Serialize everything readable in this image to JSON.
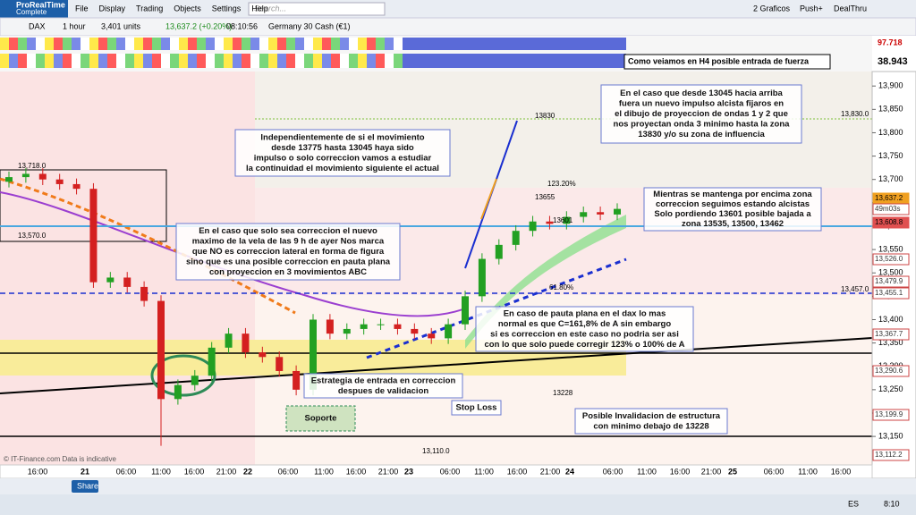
{
  "menu": {
    "app_name": "ProRealTime",
    "app_edition": "Complete",
    "items": [
      "File",
      "Display",
      "Trading",
      "Objects",
      "Settings",
      "Help"
    ],
    "search_placeholder": "Search...",
    "right": [
      "2 Graficos",
      "Push+",
      "DealThru"
    ]
  },
  "toolbar": {
    "instrument": "DAX",
    "timeframe": "1 hour",
    "units": "3,401 units",
    "price": "13,637.2 (+0.20%)",
    "time": "08:10:56",
    "name": "Germany 30 Cash (€1)"
  },
  "indicators": {
    "top_value": "97.718",
    "bottom_value": "38.943",
    "note": "Como veiamos en H4 posible entrada de fuerza"
  },
  "chart": {
    "ylim": [
      13089,
      13931
    ],
    "yticks": [
      {
        "value": 13900,
        "label": "13,900"
      },
      {
        "value": 13850,
        "label": "13,850"
      },
      {
        "value": 13800,
        "label": "13,800"
      },
      {
        "value": 13750,
        "label": "13,750"
      },
      {
        "value": 13700,
        "label": "13,700"
      },
      {
        "value": 13650,
        "label": "13,650"
      },
      {
        "value": 13600,
        "label": "13,600"
      },
      {
        "value": 13550,
        "label": "13,550"
      },
      {
        "value": 13500,
        "label": "13,500"
      },
      {
        "value": 13450,
        "label": "13,450"
      },
      {
        "value": 13400,
        "label": "13,400"
      },
      {
        "value": 13350,
        "label": "13,350"
      },
      {
        "value": 13300,
        "label": "13,300"
      },
      {
        "value": 13250,
        "label": "13,250"
      },
      {
        "value": 13200,
        "label": "13,200"
      },
      {
        "value": 13150,
        "label": "13,150"
      }
    ],
    "open": [
      13695,
      13705,
      13712,
      13700,
      13690,
      13680,
      13480,
      13490,
      13470,
      13440,
      13230,
      13260,
      13280,
      13340,
      13370,
      13330,
      13320,
      13290,
      13250,
      13400,
      13370,
      13380,
      13390,
      13390,
      13380,
      13370,
      13360,
      13390,
      13450,
      13530,
      13560,
      13590,
      13610,
      13605,
      13620,
      13630,
      13625
    ],
    "high": [
      13717,
      13724,
      13724,
      13712,
      13702,
      13692,
      13502,
      13502,
      13482,
      13452,
      13272,
      13292,
      13352,
      13382,
      13382,
      13342,
      13332,
      13302,
      13412,
      13412,
      13392,
      13402,
      13402,
      13402,
      13392,
      13382,
      13402,
      13462,
      13542,
      13572,
      13602,
      13622,
      13622,
      13632,
      13642,
      13642,
      13649
    ],
    "low": [
      13683,
      13693,
      13688,
      13678,
      13668,
      13468,
      13468,
      13458,
      13428,
      13130,
      13218,
      13248,
      13268,
      13328,
      13318,
      13308,
      13278,
      13238,
      13238,
      13358,
      13358,
      13368,
      13378,
      13368,
      13358,
      13348,
      13348,
      13378,
      13438,
      13518,
      13548,
      13578,
      13593,
      13593,
      13608,
      13613,
      13613
    ],
    "close": [
      13705,
      13712,
      13700,
      13690,
      13680,
      13480,
      13490,
      13470,
      13440,
      13230,
      13260,
      13280,
      13340,
      13370,
      13330,
      13320,
      13290,
      13250,
      13400,
      13370,
      13380,
      13390,
      13390,
      13380,
      13370,
      13360,
      13390,
      13450,
      13530,
      13560,
      13590,
      13610,
      13605,
      13620,
      13630,
      13625,
      13637
    ],
    "xlabels": [
      "16:00",
      "21",
      "06:00",
      "11:00",
      "16:00",
      "21:00",
      "22",
      "06:00",
      "11:00",
      "16:00",
      "21:00",
      "23",
      "06:00",
      "11:00",
      "16:00",
      "21:00",
      "24",
      "06:00",
      "11:00",
      "16:00",
      "21:00",
      "25",
      "06:00",
      "11:00",
      "16:00"
    ]
  },
  "price_tags": [
    "13,637.2",
    "49m03s",
    "13,608.8",
    "13,526.0",
    "13,479.9",
    "13,455.1",
    "13,367.7",
    "13,290.6",
    "13,199.9",
    "13,112.2"
  ],
  "chart_labels": [
    "13,718.0",
    "13,570.0",
    "13,830.0",
    "13,457.0",
    "13,110.0",
    "13830",
    "13655",
    "123.20%",
    "61.80%",
    "13601",
    "13228"
  ],
  "annotations": [
    {
      "lines": [
        "Independientemente de si el movimiento",
        "desde 13775 hasta 13045 haya sido",
        "impulso o solo correccion vamos a estudiar",
        "la continuidad el movimiento siguiente el actual"
      ]
    },
    {
      "lines": [
        "En el caso que desde 13045 hacia arriba",
        "fuera un nuevo impulso alcista fijaros en",
        "el dibujo de proyeccion de ondas 1 y 2 que",
        "nos proyectan onda 3 minimo hasta la zona",
        "13830 y/o su zona de influencia"
      ]
    },
    {
      "lines": [
        "Mientras se mantenga por encima zona",
        "correccion seguimos estando alcistas",
        "Solo pordiendo 13601 posible bajada a",
        "zona 13535, 13500, 13462"
      ]
    },
    {
      "lines": [
        "En el caso que solo sea correccion el nuevo",
        "maximo de la vela de las 9 h de ayer Nos marca",
        "que NO es correccion lateral en forma de figura",
        "sino que es una posible correccion en pauta plana",
        "con proyeccion en 3 movimientos ABC"
      ]
    },
    {
      "lines": [
        "En caso de pauta plana en el dax lo mas",
        "normal es que C=161,8% de A sin embargo",
        "si es correccion en este caso no podria ser asi",
        "con lo que solo puede corregir 123% o 100% de A"
      ]
    },
    {
      "lines": [
        "Estrategia de entrada en correccion",
        "despues de validacion"
      ]
    },
    {
      "lines": [
        "Stop Loss"
      ]
    },
    {
      "lines": [
        "Soporte"
      ]
    },
    {
      "lines": [
        "Posible Invalidacion de estructura",
        "con minimo debajo de 13228"
      ]
    }
  ],
  "footer": {
    "copyright": "© IT-Finance.com Data is indicative",
    "share": "Share"
  },
  "taskbar": {
    "language": "ES",
    "clock": "8:10"
  }
}
